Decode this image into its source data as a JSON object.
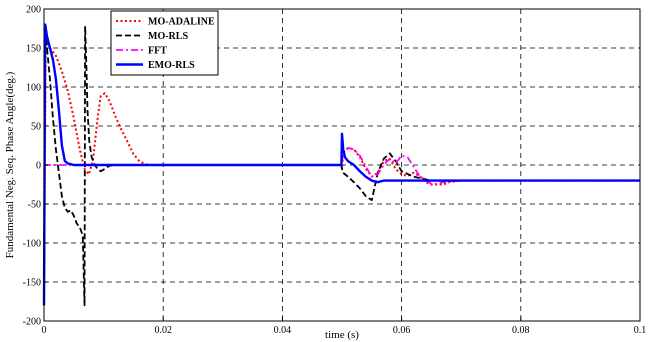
{
  "chart_data": {
    "type": "line",
    "title": "",
    "xlabel": "time (s)",
    "ylabel": "Fundamental Neg. Seq. Phase Angle(deg.)",
    "xlim": [
      0,
      0.1
    ],
    "ylim": [
      -200,
      200
    ],
    "xticks": [
      "0",
      "0.02",
      "0.04",
      "0.06",
      "0.08",
      "0.1"
    ],
    "yticks": [
      "-200",
      "-150",
      "-100",
      "-50",
      "0",
      "50",
      "100",
      "150",
      "200"
    ],
    "grid": true,
    "legend_position": "top-left",
    "series": [
      {
        "name": "MO-ADALINE",
        "color": "#ff0000",
        "style": "dotted",
        "x": [
          0,
          0.0003,
          0.0006,
          0.001,
          0.002,
          0.003,
          0.004,
          0.005,
          0.006,
          0.0068,
          0.0075,
          0.0082,
          0.009,
          0.0095,
          0.0102,
          0.011,
          0.012,
          0.013,
          0.014,
          0.015,
          0.016,
          0.017,
          0.018,
          0.02,
          0.03,
          0.04,
          0.0499,
          0.05,
          0.0502,
          0.051,
          0.052,
          0.053,
          0.054,
          0.055,
          0.056,
          0.057,
          0.058,
          0.059,
          0.06,
          0.061,
          0.062,
          0.063,
          0.064,
          0.065,
          0.066,
          0.067,
          0.068,
          0.07,
          0.08,
          0.09,
          0.1
        ],
        "y": [
          -180,
          178,
          160,
          150,
          140,
          120,
          95,
          60,
          20,
          -5,
          -12,
          5,
          60,
          88,
          92,
          82,
          62,
          45,
          30,
          14,
          5,
          1,
          0,
          0,
          0,
          0,
          0,
          -5,
          15,
          22,
          20,
          10,
          -5,
          -15,
          -10,
          5,
          8,
          -5,
          -12,
          -14,
          -10,
          -14,
          -22,
          -25,
          -25,
          -25,
          -22,
          -20,
          -20,
          -20,
          -20
        ]
      },
      {
        "name": "MO-RLS",
        "color": "#000000",
        "style": "dashed",
        "x": [
          0,
          0.0002,
          0.0005,
          0.001,
          0.0015,
          0.002,
          0.0025,
          0.003,
          0.0035,
          0.004,
          0.0045,
          0.005,
          0.0055,
          0.006,
          0.0065,
          0.0068,
          0.0069,
          0.0071,
          0.0073,
          0.0076,
          0.008,
          0.0085,
          0.009,
          0.0095,
          0.01,
          0.0105,
          0.011,
          0.012,
          0.014,
          0.02,
          0.03,
          0.04,
          0.0499,
          0.05,
          0.0502,
          0.051,
          0.052,
          0.053,
          0.054,
          0.055,
          0.056,
          0.057,
          0.058,
          0.059,
          0.06,
          0.062,
          0.065,
          0.07,
          0.08,
          0.09,
          0.1
        ],
        "y": [
          -180,
          175,
          150,
          110,
          60,
          20,
          -10,
          -40,
          -55,
          -60,
          -58,
          -65,
          -75,
          -80,
          -90,
          -180,
          178,
          130,
          70,
          30,
          10,
          0,
          -5,
          -8,
          -6,
          -3,
          -1,
          0,
          0,
          0,
          0,
          0,
          0,
          -5,
          -10,
          -15,
          -22,
          -30,
          -40,
          -45,
          -10,
          8,
          15,
          5,
          -8,
          -15,
          -20,
          -20,
          -20,
          -20,
          -20
        ]
      },
      {
        "name": "FFT",
        "color": "#ff00ff",
        "style": "dashdot",
        "x": [
          0,
          0.005,
          0.01,
          0.02,
          0.03,
          0.04,
          0.0499,
          0.05,
          0.0502,
          0.051,
          0.052,
          0.053,
          0.054,
          0.055,
          0.056,
          0.057,
          0.058,
          0.059,
          0.06,
          0.061,
          0.062,
          0.063,
          0.064,
          0.065,
          0.066,
          0.067,
          0.068,
          0.07,
          0.08,
          0.09,
          0.1
        ],
        "y": [
          0,
          0,
          0,
          0,
          0,
          0,
          0,
          5,
          15,
          22,
          20,
          12,
          -2,
          -15,
          -12,
          0,
          8,
          2,
          12,
          10,
          -2,
          -14,
          -20,
          -24,
          -24,
          -22,
          -21,
          -20,
          -20,
          -20,
          -20
        ]
      },
      {
        "name": "EMO-RLS",
        "color": "#0000ff",
        "style": "solid",
        "x": [
          0,
          0.0002,
          0.0005,
          0.001,
          0.0015,
          0.002,
          0.0025,
          0.003,
          0.0035,
          0.004,
          0.005,
          0.006,
          0.01,
          0.02,
          0.03,
          0.04,
          0.0499,
          0.05,
          0.0502,
          0.0505,
          0.051,
          0.052,
          0.053,
          0.054,
          0.055,
          0.056,
          0.057,
          0.06,
          0.07,
          0.08,
          0.09,
          0.1
        ],
        "y": [
          -180,
          180,
          165,
          150,
          135,
          110,
          70,
          25,
          5,
          2,
          0,
          0,
          0,
          0,
          0,
          0,
          0,
          40,
          20,
          10,
          5,
          0,
          -8,
          -15,
          -20,
          -22,
          -20,
          -20,
          -20,
          -20,
          -20,
          -20
        ]
      }
    ]
  }
}
